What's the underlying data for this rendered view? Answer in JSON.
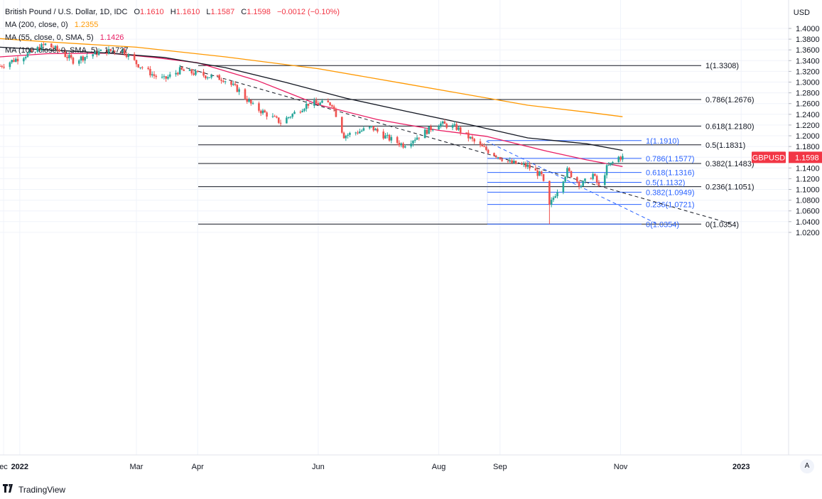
{
  "header": {
    "symbol_title": "British Pound / U.S. Dollar, 1D, IDC",
    "ohlc": [
      {
        "k": "O",
        "v": "1.1610"
      },
      {
        "k": "H",
        "v": "1.1610"
      },
      {
        "k": "L",
        "v": "1.1587"
      },
      {
        "k": "C",
        "v": "1.1598"
      }
    ],
    "change": "−0.0012 (−0.10%)",
    "indicators": [
      {
        "label": "MA (200, close, 0)",
        "value": "1.2355",
        "color": "#ff9800"
      },
      {
        "label": "MA (55, close, 0, SMA, 5)",
        "value": "1.1426",
        "color": "#e91e63"
      },
      {
        "label": "MA (100, close, 0, SMA, 5)",
        "value": "1.1727",
        "color": "#131722"
      }
    ]
  },
  "price_axis": {
    "currency": "USD",
    "ticks": [
      "1.4000",
      "1.3800",
      "1.3600",
      "1.3400",
      "1.3200",
      "1.3000",
      "1.2800",
      "1.2600",
      "1.2400",
      "1.2200",
      "1.2000",
      "1.1800",
      "1.1600",
      "1.1400",
      "1.1200",
      "1.1000",
      "1.0800",
      "1.0600",
      "1.0400",
      "1.0200"
    ],
    "current_label": "GBPUSD",
    "current_value": "1.1598"
  },
  "time_axis": [
    "ec",
    "2022",
    "Mar",
    "Apr",
    "Jun",
    "Aug",
    "Sep",
    "Nov",
    "2023"
  ],
  "fib_black": [
    {
      "label": "1(1.3308)",
      "value": 1.3308
    },
    {
      "label": "0.786(1.2676)",
      "value": 1.2676
    },
    {
      "label": "0.618(1.2180)",
      "value": 1.218
    },
    {
      "label": "0.5(1.1831)",
      "value": 1.1831
    },
    {
      "label": "0.382(1.1483)",
      "value": 1.1483
    },
    {
      "label": "0.236(1.1051)",
      "value": 1.1051
    },
    {
      "label": "0(1.0354)",
      "value": 1.0354
    }
  ],
  "fib_blue": [
    {
      "label": "1(1.1910)",
      "value": 1.191
    },
    {
      "label": "0.786(1.1577)",
      "value": 1.1577
    },
    {
      "label": "0.618(1.1316)",
      "value": 1.1316
    },
    {
      "label": "0.5(1.1132)",
      "value": 1.1132
    },
    {
      "label": "0.382(1.0949)",
      "value": 1.0949
    },
    {
      "label": "0.236(1.0721)",
      "value": 1.0721
    },
    {
      "label": "0(1.0354)",
      "value": 1.0354
    }
  ],
  "colors": {
    "up": "#26a69a",
    "down": "#ef5350",
    "ma200": "#ff9800",
    "ma55": "#e91e63",
    "ma100": "#131722",
    "fib_blue": "#2962ff",
    "price_badge": "#f23645"
  },
  "auto_button": "A",
  "brand": "TradingView",
  "chart_data": {
    "type": "candlestick",
    "title": "British Pound / U.S. Dollar, 1D, IDC",
    "ylabel": "USD",
    "ylim": [
      1.01,
      1.41
    ],
    "x_start": "2021-12-22",
    "x_end": "2023-01-25",
    "grid": true,
    "anchors": [
      [
        "2021-12-22",
        1.33
      ],
      [
        "2022-01-05",
        1.352
      ],
      [
        "2022-01-14",
        1.37
      ],
      [
        "2022-01-20",
        1.36
      ],
      [
        "2022-01-28",
        1.34
      ],
      [
        "2022-02-10",
        1.356
      ],
      [
        "2022-02-22",
        1.36
      ],
      [
        "2022-03-01",
        1.335
      ],
      [
        "2022-03-10",
        1.312
      ],
      [
        "2022-03-15",
        1.305
      ],
      [
        "2022-03-23",
        1.322
      ],
      [
        "2022-04-08",
        1.31
      ],
      [
        "2022-04-14",
        1.306
      ],
      [
        "2022-04-22",
        1.284
      ],
      [
        "2022-04-29",
        1.255
      ],
      [
        "2022-05-13",
        1.225
      ],
      [
        "2022-05-27",
        1.26
      ],
      [
        "2022-06-08",
        1.26
      ],
      [
        "2022-06-14",
        1.2
      ],
      [
        "2022-06-28",
        1.215
      ],
      [
        "2022-07-06",
        1.196
      ],
      [
        "2022-07-14",
        1.183
      ],
      [
        "2022-07-22",
        1.2
      ],
      [
        "2022-08-01",
        1.223
      ],
      [
        "2022-08-10",
        1.215
      ],
      [
        "2022-08-22",
        1.18
      ],
      [
        "2022-08-31",
        1.162
      ],
      [
        "2022-09-06",
        1.15
      ],
      [
        "2022-09-15",
        1.143
      ],
      [
        "2022-09-22",
        1.125
      ],
      [
        "2022-09-26",
        1.068
      ],
      [
        "2022-09-28",
        1.085
      ],
      [
        "2022-10-05",
        1.135
      ],
      [
        "2022-10-12",
        1.108
      ],
      [
        "2022-10-18",
        1.128
      ],
      [
        "2022-10-21",
        1.105
      ],
      [
        "2022-10-25",
        1.14
      ],
      [
        "2022-10-31",
        1.16
      ],
      [
        "2022-11-02",
        1.1598
      ]
    ],
    "extremes": [
      {
        "date": "2022-09-26",
        "low": 1.0354
      },
      {
        "date": "2022-01-13",
        "high": 1.3748
      }
    ],
    "series": [
      {
        "name": "MA (200, close, 0)",
        "points": [
          [
            "2021-12-22",
            1.381
          ],
          [
            "2022-01-15",
            1.375
          ],
          [
            "2022-03-01",
            1.365
          ],
          [
            "2022-04-15",
            1.347
          ],
          [
            "2022-06-01",
            1.325
          ],
          [
            "2022-07-15",
            1.297
          ],
          [
            "2022-08-15",
            1.277
          ],
          [
            "2022-09-15",
            1.257
          ],
          [
            "2022-10-15",
            1.244
          ],
          [
            "2022-11-02",
            1.2355
          ]
        ]
      },
      {
        "name": "MA (55, close, 0, SMA, 5)",
        "points": [
          [
            "2021-12-22",
            1.347
          ],
          [
            "2022-01-15",
            1.353
          ],
          [
            "2022-02-15",
            1.354
          ],
          [
            "2022-03-10",
            1.346
          ],
          [
            "2022-04-01",
            1.336
          ],
          [
            "2022-05-01",
            1.303
          ],
          [
            "2022-06-01",
            1.258
          ],
          [
            "2022-07-01",
            1.23
          ],
          [
            "2022-08-01",
            1.21
          ],
          [
            "2022-08-25",
            1.199
          ],
          [
            "2022-09-25",
            1.171
          ],
          [
            "2022-10-15",
            1.155
          ],
          [
            "2022-11-02",
            1.1426
          ]
        ]
      },
      {
        "name": "MA (100, close, 0, SMA, 5)",
        "points": [
          [
            "2021-12-22",
            1.365
          ],
          [
            "2022-01-15",
            1.36
          ],
          [
            "2022-02-15",
            1.354
          ],
          [
            "2022-03-15",
            1.346
          ],
          [
            "2022-04-15",
            1.327
          ],
          [
            "2022-05-15",
            1.3
          ],
          [
            "2022-06-15",
            1.27
          ],
          [
            "2022-07-15",
            1.246
          ],
          [
            "2022-08-15",
            1.222
          ],
          [
            "2022-09-15",
            1.196
          ],
          [
            "2022-10-15",
            1.185
          ],
          [
            "2022-11-02",
            1.1727
          ]
        ]
      }
    ],
    "trendlines": [
      {
        "name": "dashed-black",
        "from": [
          "2022-03-23",
          1.33
        ],
        "to": [
          "2022-12-28",
          1.035
        ]
      },
      {
        "name": "dashed-blue",
        "from": [
          "2022-08-25",
          1.19
        ],
        "to": [
          "2022-11-20",
          1.035
        ]
      }
    ]
  }
}
